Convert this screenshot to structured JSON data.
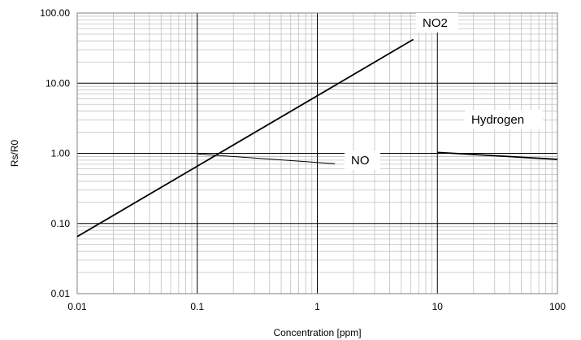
{
  "chart_data": {
    "type": "line",
    "title": "",
    "xlabel": "Concentration [ppm]",
    "ylabel": "Rs/R0",
    "xscale": "log",
    "yscale": "log",
    "xlim": [
      0.01,
      100
    ],
    "ylim": [
      0.01,
      100
    ],
    "x_ticks": [
      "0.01",
      "0.1",
      "1",
      "10",
      "100"
    ],
    "y_ticks": [
      "0.01",
      "0.10",
      "1.00",
      "10.00",
      "100.00"
    ],
    "grid": "major and minor",
    "series": [
      {
        "name": "NO2",
        "x": [
          0.01,
          6.3
        ],
        "y": [
          0.065,
          42
        ]
      },
      {
        "name": "NO",
        "x": [
          0.1,
          1.4
        ],
        "y": [
          0.98,
          0.71
        ]
      },
      {
        "name": "Hydrogen",
        "x": [
          10,
          100
        ],
        "y": [
          1.03,
          0.82
        ]
      }
    ]
  }
}
